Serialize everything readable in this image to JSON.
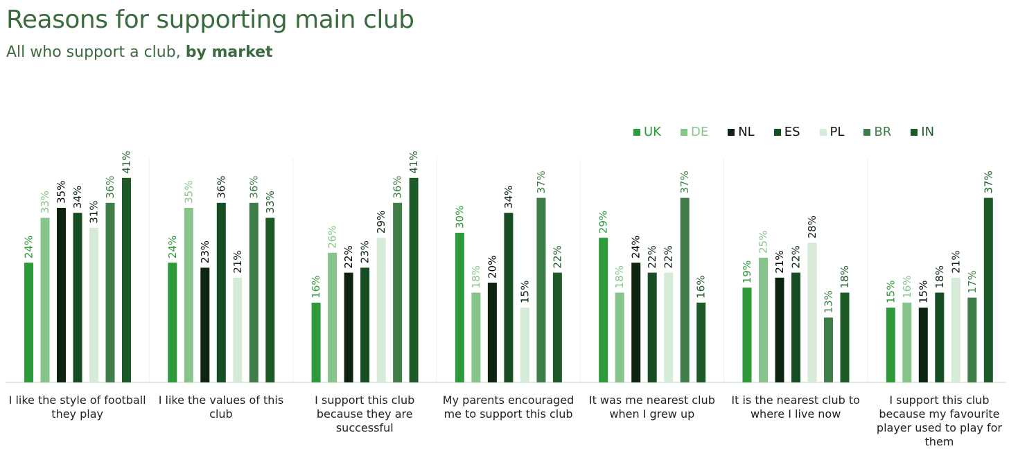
{
  "title": "Reasons for supporting main club",
  "subtitle_prefix": "All who support a club, ",
  "subtitle_bold": "by market",
  "chart_data": {
    "type": "bar",
    "categories": [
      [
        "I like the style of football",
        "they play"
      ],
      [
        "I like the values of this",
        "club"
      ],
      [
        "I support this club",
        "because they are",
        "successful"
      ],
      [
        "My parents encouraged",
        "me to support this club"
      ],
      [
        "It was me nearest club",
        "when I grew up"
      ],
      [
        "It is the nearest club to",
        "where I live now"
      ],
      [
        "I support this club",
        "because my favourite",
        "player used to play for",
        "them"
      ]
    ],
    "series": [
      {
        "name": "UK",
        "color": "#2e9a3a",
        "label_color": "#2e9a3a",
        "values": [
          24,
          24,
          16,
          30,
          29,
          19,
          15
        ]
      },
      {
        "name": "DE",
        "color": "#86c48a",
        "label_color": "#86c48a",
        "values": [
          33,
          35,
          26,
          18,
          18,
          25,
          16
        ]
      },
      {
        "name": "NL",
        "color": "#0e2410",
        "label_color": "#000000",
        "values": [
          35,
          23,
          22,
          20,
          24,
          21,
          15
        ]
      },
      {
        "name": "ES",
        "color": "#174d22",
        "label_color": "#0e2410",
        "values": [
          34,
          36,
          23,
          34,
          22,
          22,
          18
        ]
      },
      {
        "name": "PL",
        "color": "#d6ead8",
        "label_color": "#0e2410",
        "values": [
          31,
          21,
          29,
          15,
          22,
          28,
          21
        ]
      },
      {
        "name": "BR",
        "color": "#3f7d48",
        "label_color": "#3f7d48",
        "values": [
          36,
          36,
          36,
          37,
          37,
          13,
          17
        ]
      },
      {
        "name": "IN",
        "color": "#1e5a28",
        "label_color": "#1e5a28",
        "values": [
          41,
          33,
          41,
          22,
          16,
          18,
          37
        ]
      }
    ],
    "value_suffix": "%",
    "legend_position": "top-right",
    "ylim": [
      0,
      41
    ]
  }
}
